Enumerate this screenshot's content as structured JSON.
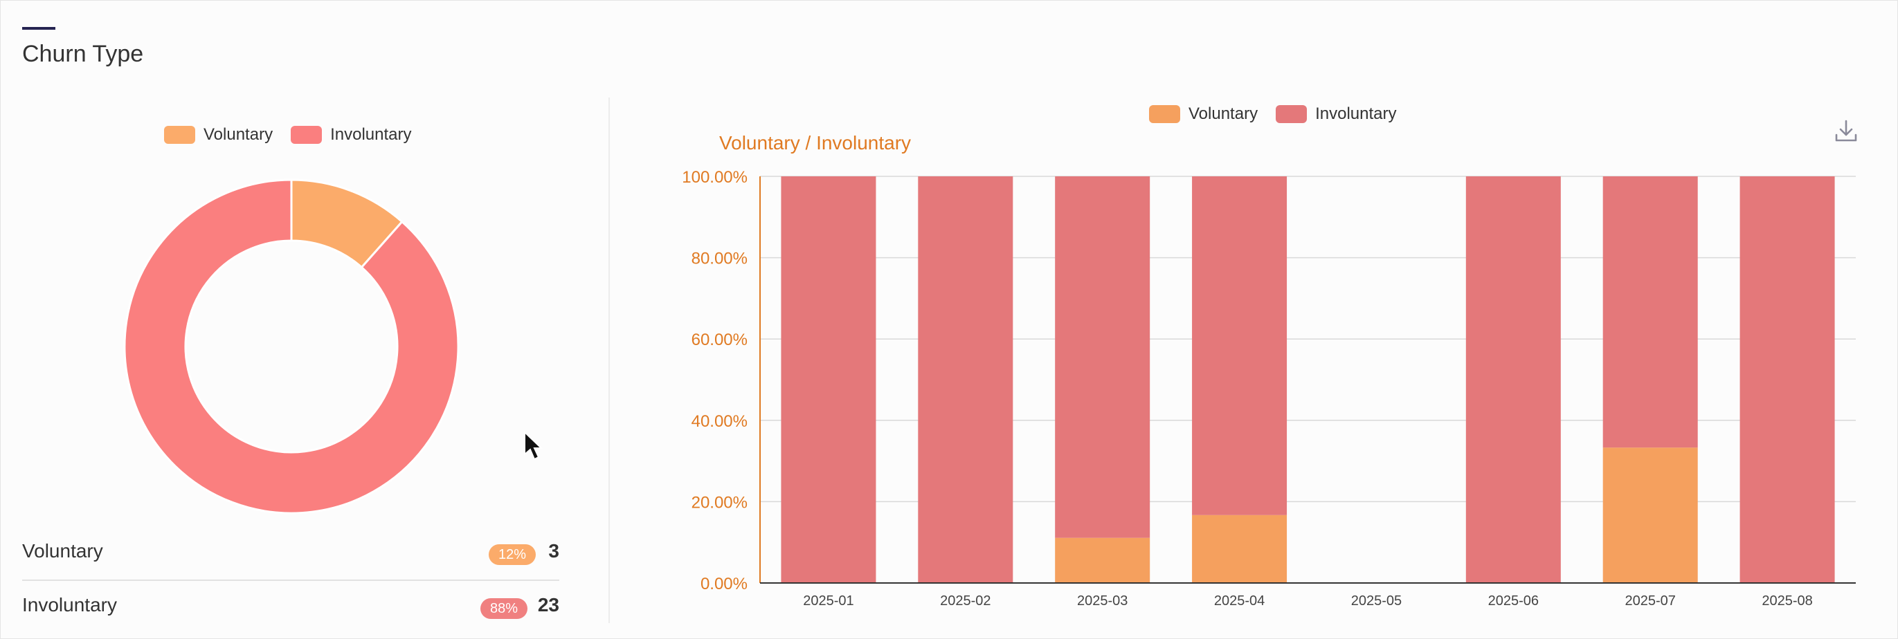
{
  "card": {
    "title": "Churn Type"
  },
  "colors": {
    "voluntary": "#f5a05e",
    "involuntary": "#e4787a",
    "donut_voluntary": "#fbab6a",
    "donut_involuntary": "#fa7f7f",
    "axis": "#e07a22"
  },
  "legend": {
    "voluntary": "Voluntary",
    "involuntary": "Involuntary"
  },
  "summary": [
    {
      "label": "Voluntary",
      "percent": "12%",
      "count": "3"
    },
    {
      "label": "Involuntary",
      "percent": "88%",
      "count": "23"
    }
  ],
  "icons": {
    "download": "download-icon",
    "cursor": "mouse-pointer-icon"
  },
  "chart_data": [
    {
      "type": "pie",
      "categories": [
        "Voluntary",
        "Involuntary"
      ],
      "values": [
        3,
        23
      ]
    },
    {
      "type": "bar",
      "stacked": true,
      "ylabel": "Voluntary / Involuntary",
      "ylim": [
        0,
        100
      ],
      "yticks": [
        "0.00%",
        "20.00%",
        "40.00%",
        "60.00%",
        "80.00%",
        "100.00%"
      ],
      "categories": [
        "2025-01",
        "2025-02",
        "2025-03",
        "2025-04",
        "2025-05",
        "2025-06",
        "2025-07",
        "2025-08"
      ],
      "series": [
        {
          "name": "Voluntary",
          "values": [
            0,
            0,
            11.1,
            16.7,
            0,
            0,
            33.3,
            0
          ]
        },
        {
          "name": "Involuntary",
          "values": [
            100,
            100,
            88.9,
            83.3,
            0,
            100,
            66.7,
            100
          ]
        }
      ],
      "grid": true,
      "legend": "top-center"
    }
  ]
}
